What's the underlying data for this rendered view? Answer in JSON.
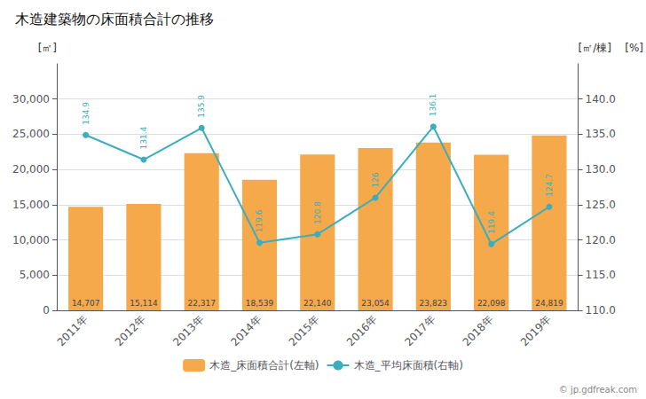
{
  "chart_data": {
    "type": "bar",
    "title": "木造建築物の床面積合計の推移",
    "ylabel": "[㎡]",
    "y2label": [
      "[㎡/棟]",
      "[%]"
    ],
    "annotations": [
      "© jp.gdfreak.com"
    ],
    "categories": [
      "2011年",
      "2012年",
      "2013年",
      "2014年",
      "2015年",
      "2016年",
      "2017年",
      "2018年",
      "2019年"
    ],
    "series": [
      {
        "name": "木造_床面積合計(左軸)",
        "type": "bar",
        "color": "#F5A94A",
        "values": [
          14707,
          15114,
          22317,
          18539,
          22140,
          23054,
          23823,
          22098,
          24819
        ],
        "value_labels": [
          "14,707",
          "15,114",
          "22,317",
          "18,539",
          "22,140",
          "23,054",
          "23,823",
          "22,098",
          "24,819"
        ]
      },
      {
        "name": "木造_平均床面積(右軸)",
        "type": "line",
        "axis": "y2",
        "color": "#3AAEBD",
        "marker": "circle",
        "values": [
          134.9,
          131.4,
          135.9,
          119.6,
          120.8,
          126.0,
          136.1,
          119.4,
          124.7
        ],
        "value_labels": [
          "134.9",
          "131.4",
          "135.9",
          "119.6",
          "120.8",
          "126",
          "136.1",
          "119.4",
          "124.7"
        ]
      }
    ],
    "ylim": [
      0,
      35000
    ],
    "yticks": [
      0,
      {
        "value": 5000,
        "label": "5,000"
      },
      {
        "value": 10000,
        "label": "10,000"
      },
      {
        "value": 15000,
        "label": "15,000"
      },
      {
        "value": 20000,
        "label": "20,000"
      },
      {
        "value": 25000,
        "label": "25,000"
      },
      {
        "value": 30000,
        "label": "30,000"
      }
    ],
    "y2lim": [
      110,
      145
    ],
    "y2ticks": [
      {
        "value": 110,
        "label": "110.0"
      },
      {
        "value": 115,
        "label": "115.0"
      },
      {
        "value": 120,
        "label": "120.0"
      },
      {
        "value": 125,
        "label": "125.0"
      },
      {
        "value": 130,
        "label": "130.0"
      },
      {
        "value": 135,
        "label": "135.0"
      },
      {
        "value": 140,
        "label": "140.0"
      }
    ],
    "grid": true,
    "legend": "bottom",
    "data_labels": true
  }
}
